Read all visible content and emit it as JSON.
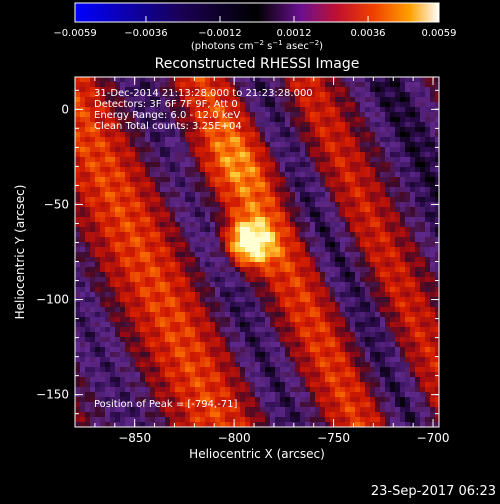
{
  "chart_data": {
    "type": "heatmap",
    "title": "Reconstructed RHESSI Image",
    "xlabel": "Heliocentric X (arcsec)",
    "ylabel": "Heliocentric Y (arcsec)",
    "xlim": [
      -880,
      -697
    ],
    "ylim": [
      -167,
      17
    ],
    "x_ticks": [
      -850,
      -800,
      -750,
      -700
    ],
    "y_ticks": [
      0,
      -50,
      -100,
      -150
    ],
    "x_tick_labels": [
      "−850",
      "−800",
      "−750",
      "−700"
    ],
    "y_tick_labels": [
      "0",
      "−50",
      "−100",
      "−150"
    ],
    "colorbar": {
      "range": [
        -0.0059,
        0.0059
      ],
      "ticks": [
        -0.0059,
        -0.0036,
        -0.0012,
        0.0012,
        0.0036,
        0.0059
      ],
      "tick_labels": [
        "−0.0059",
        "−0.0036",
        "−0.0012",
        "0.0012",
        "0.0036",
        "0.0059"
      ],
      "units_main": "(photons cm",
      "units_sup1": "−2",
      "units_mid": " s",
      "units_sup2": "−1",
      "units_mid2": " asec",
      "units_sup3": "−2",
      "units_end": ")",
      "stops": [
        "#0000ff",
        "#000000",
        "#4b1080",
        "#b01020",
        "#e23800",
        "#ff9000",
        "#fff4a0",
        "#ffffff"
      ]
    },
    "annotations": [
      "31-Dec-2014 21:13:28.000 to 21:23:28.000",
      "Detectors: 3F 6F 7F 9F, Att 0",
      "Energy Range: 6.0 - 12.0 keV",
      "Clean     Total counts: 3.25E+04"
    ],
    "peak_label": "Position of Peak = [-794,-71]",
    "peak": [
      -794,
      -71
    ]
  },
  "footer_date": "23-Sep-2017 06:23"
}
